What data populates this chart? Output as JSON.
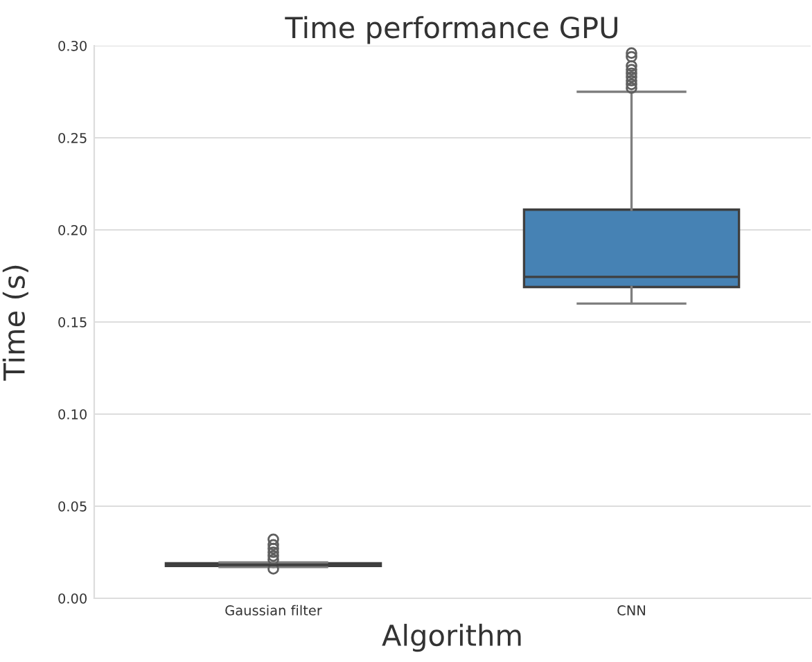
{
  "chart_data": {
    "type": "box",
    "title": "Time performance GPU",
    "xlabel": "Algorithm",
    "ylabel": "Time (s)",
    "categories": [
      "Gaussian filter",
      "CNN"
    ],
    "color": "#4682b4",
    "boxes": [
      {
        "low": 0.017,
        "q1": 0.0175,
        "median": 0.018,
        "q3": 0.019,
        "high": 0.0195,
        "outliers": [
          0.016,
          0.021,
          0.023,
          0.025,
          0.027,
          0.029,
          0.032
        ]
      },
      {
        "low": 0.16,
        "q1": 0.169,
        "median": 0.1745,
        "q3": 0.211,
        "high": 0.275,
        "outliers": [
          0.277,
          0.279,
          0.281,
          0.283,
          0.285,
          0.287,
          0.289,
          0.294,
          0.296
        ]
      }
    ],
    "ylim": [
      0,
      0.3
    ],
    "yticks": [
      {
        "value": 0,
        "label": "0.00"
      },
      {
        "value": 0.05,
        "label": "0.05"
      },
      {
        "value": 0.1,
        "label": "0.10"
      },
      {
        "value": 0.15,
        "label": "0.15"
      },
      {
        "value": 0.2,
        "label": "0.20"
      },
      {
        "value": 0.25,
        "label": "0.25"
      },
      {
        "value": 0.3,
        "label": "0.30"
      }
    ],
    "grid": "y"
  }
}
